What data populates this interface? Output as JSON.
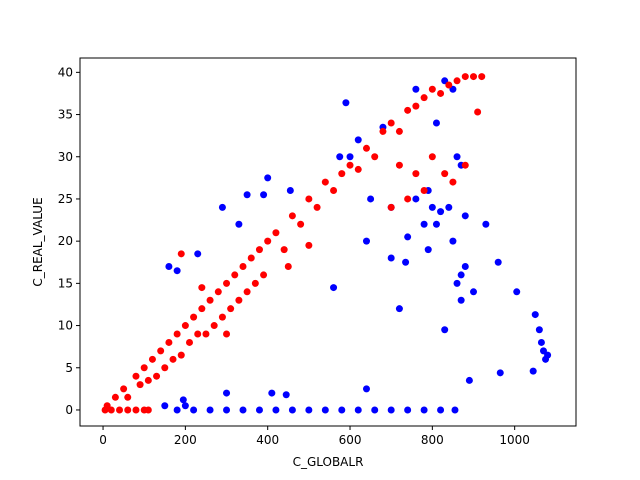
{
  "chart_data": {
    "type": "scatter",
    "x_label": "C_GLOBALR",
    "y_label": "C_REAL_VALUE",
    "xlim": [
      -56,
      1149
    ],
    "ylim": [
      -1.9,
      41.7
    ],
    "xticks": [
      0,
      200,
      400,
      600,
      800,
      1000
    ],
    "yticks": [
      0,
      5,
      10,
      15,
      20,
      25,
      30,
      35,
      40
    ],
    "grid": false,
    "series": [
      {
        "color": "#0000ff",
        "x": [
          180,
          220,
          260,
          300,
          340,
          380,
          420,
          460,
          500,
          540,
          580,
          620,
          660,
          700,
          740,
          780,
          820,
          855,
          195,
          200,
          300,
          410,
          445,
          640,
          160,
          180,
          230,
          290,
          330,
          350,
          390,
          400,
          455,
          575,
          590,
          560,
          640,
          700,
          650,
          720,
          735,
          760,
          780,
          800,
          830,
          850,
          860,
          870,
          880,
          900,
          890,
          930,
          960,
          1005,
          1050,
          1060,
          1065,
          1070,
          1075,
          1080,
          1045,
          965,
          860,
          870,
          880,
          820,
          790,
          760,
          830,
          810,
          850,
          600,
          620,
          680,
          700,
          740,
          790,
          810,
          840,
          150,
          870
        ],
        "values": [
          0,
          0,
          0,
          0,
          0,
          0,
          0,
          0,
          0,
          0,
          0,
          0,
          0,
          0,
          0,
          0,
          0,
          0,
          1.2,
          0.5,
          2,
          2,
          1.8,
          2.5,
          17,
          16.5,
          18.5,
          24,
          22,
          25.5,
          25.5,
          27.5,
          26,
          30,
          36.4,
          14.5,
          20,
          18,
          25,
          12,
          17.5,
          25,
          22,
          24,
          9.5,
          20,
          15,
          13,
          17,
          14,
          3.5,
          22,
          17.5,
          14,
          11.3,
          9.5,
          8,
          7,
          6,
          6.5,
          4.6,
          4.4,
          30,
          29,
          23,
          23.5,
          26,
          38,
          39,
          34,
          38,
          30,
          32,
          33.5,
          24,
          20.5,
          19,
          22,
          24,
          0.5,
          16
        ]
      },
      {
        "color": "#ff0000",
        "x": [
          5,
          20,
          40,
          60,
          80,
          100,
          110,
          10,
          30,
          50,
          60,
          80,
          90,
          100,
          110,
          120,
          130,
          140,
          150,
          160,
          170,
          180,
          190,
          200,
          210,
          220,
          230,
          240,
          250,
          260,
          270,
          280,
          290,
          300,
          310,
          320,
          330,
          340,
          350,
          360,
          370,
          380,
          390,
          400,
          420,
          440,
          460,
          480,
          500,
          520,
          540,
          560,
          580,
          600,
          620,
          640,
          660,
          680,
          700,
          720,
          740,
          760,
          780,
          800,
          820,
          840,
          860,
          880,
          900,
          920,
          910,
          700,
          720,
          760,
          800,
          850,
          880,
          780,
          740,
          830,
          190,
          240,
          300,
          450,
          500
        ],
        "values": [
          0,
          0,
          0,
          0,
          0,
          0,
          0,
          0.5,
          1.5,
          2.5,
          1.5,
          4,
          3,
          5,
          3.5,
          6,
          4,
          7,
          5,
          8,
          6,
          9,
          6.5,
          10,
          8,
          11,
          9,
          12,
          9,
          13,
          10,
          14,
          11,
          15,
          12,
          16,
          13,
          17,
          14,
          18,
          15,
          19,
          16,
          20,
          21,
          19,
          23,
          22,
          25,
          24,
          27,
          26,
          28,
          29,
          28.5,
          31,
          30,
          33,
          34,
          33,
          35.5,
          36,
          37,
          38,
          37.5,
          38.5,
          39,
          39.5,
          39.5,
          39.5,
          35.3,
          24,
          29,
          28,
          30,
          27,
          29,
          26,
          25,
          28,
          18.5,
          14.5,
          9,
          17,
          19.5
        ]
      }
    ]
  }
}
